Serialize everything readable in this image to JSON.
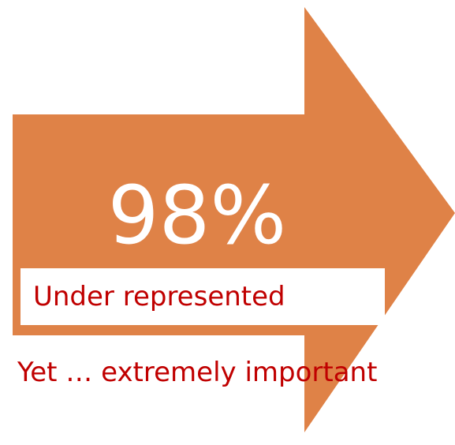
{
  "colors": {
    "arrow": "#df8247",
    "label_text": "#c00000",
    "label_background": "#ffffff",
    "percent_text": "#ffffff"
  },
  "stat": {
    "value": "98%"
  },
  "label": {
    "text": "Under represented"
  },
  "tagline": {
    "text": "Yet … extremely important"
  }
}
